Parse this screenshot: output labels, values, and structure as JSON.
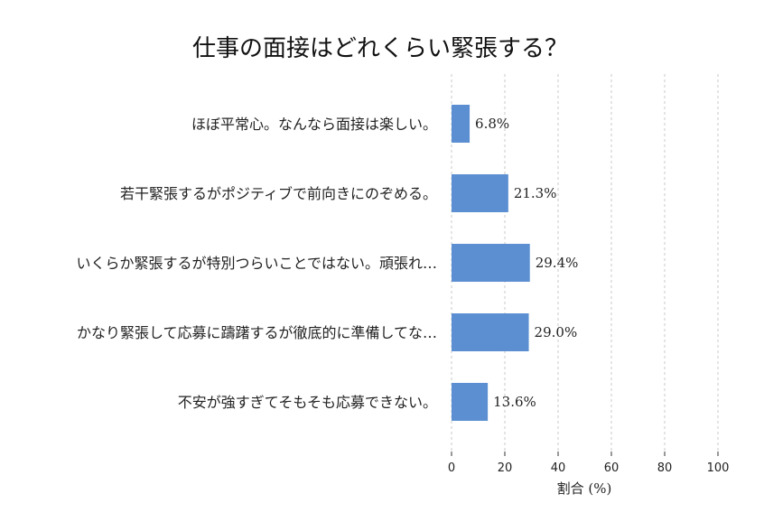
{
  "chart_data": {
    "type": "bar",
    "orientation": "horizontal",
    "title": "仕事の面接はどれくらい緊張する？",
    "xlabel": "割合 (%)",
    "ylabel": "",
    "xlim": [
      0,
      100
    ],
    "xticks": [
      0,
      20,
      40,
      60,
      80,
      100
    ],
    "grid": true,
    "bar_color": "#5b8fd1",
    "categories": [
      "ほぼ平常心。なんなら面接は楽しい。",
      "若干緊張するがポジティブで前向きにのぞめる。",
      "いくらか緊張するが特別つらいことではない。頑張れ…",
      "かなり緊張して応募に躊躇するが徹底的に準備してな…",
      "不安が強すぎてそもそも応募できない。"
    ],
    "values": [
      6.8,
      21.3,
      29.4,
      29.0,
      13.6
    ],
    "value_labels": [
      "6.8%",
      "21.3%",
      "29.4%",
      "29.0%",
      "13.6%"
    ]
  }
}
